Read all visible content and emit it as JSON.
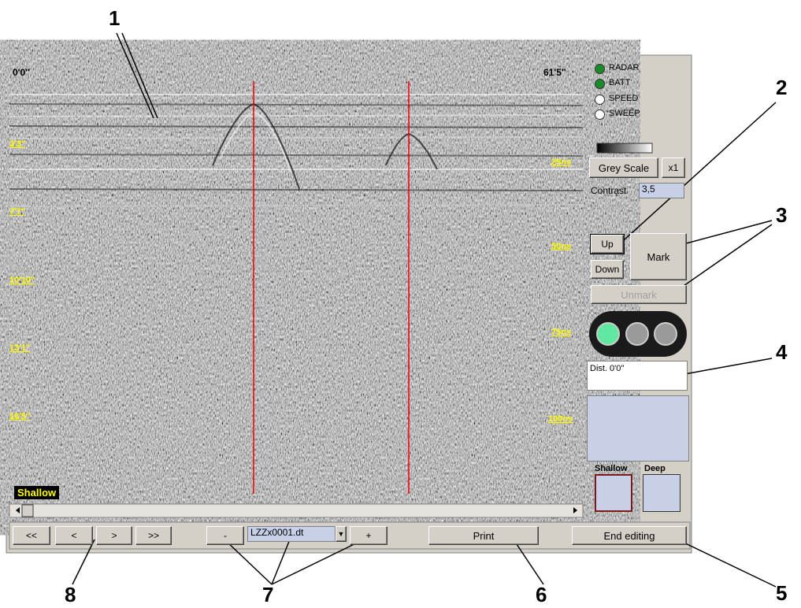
{
  "callouts": [
    "1",
    "2",
    "3",
    "4",
    "5",
    "6",
    "7",
    "8"
  ],
  "radar": {
    "start": "0'0''",
    "end": "61'5''",
    "depth_labels": [
      "3'3''",
      "7'7''",
      "10'10''",
      "13'1''",
      "16'5''"
    ],
    "time_labels": [
      "25ns",
      "50ns",
      "75ns",
      "100ns"
    ],
    "overlay": "Shallow"
  },
  "status": [
    "RADAR",
    "BATT",
    "SPEED",
    "SWEEP"
  ],
  "controls": {
    "palette": "Grey Scale",
    "zoom": "x1",
    "contrast_label": "Contrast",
    "contrast_value": "3,5",
    "up": "Up",
    "down": "Down",
    "mark": "Mark",
    "unmark": "Unmark",
    "distance": "Dist. 0'0''",
    "shallow": "Shallow",
    "deep": "Deep"
  },
  "toolbar": {
    "first": "<<",
    "prev": "<",
    "next": ">",
    "last": ">>",
    "minus": "-",
    "file": "LZZx0001.dt",
    "plus": "+",
    "print": "Print",
    "end": "End editing"
  }
}
